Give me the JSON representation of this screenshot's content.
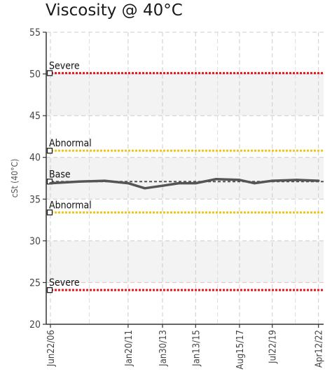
{
  "chart_data": {
    "type": "line",
    "title": "Viscosity @ 40°C",
    "ylabel": "cSt (40°C)",
    "xlabel": "",
    "ylim": [
      20,
      55
    ],
    "yticks": [
      20,
      25,
      30,
      35,
      40,
      45,
      50,
      55
    ],
    "xlim": [
      "2006-06-22",
      "2022-06-01"
    ],
    "xticks": [
      {
        "date": "2006-06-22",
        "label": "Jun22/06"
      },
      {
        "date": "2011-01-20",
        "label": "Jan20/11"
      },
      {
        "date": "2013-01-30",
        "label": "Jan30/13"
      },
      {
        "date": "2015-01-13",
        "label": "Jan13/15"
      },
      {
        "date": "2017-08-15",
        "label": "Aug15/17"
      },
      {
        "date": "2019-07-22",
        "label": "Jul22/19"
      },
      {
        "date": "2022-04-12",
        "label": "Apr12/22"
      }
    ],
    "grid": true,
    "shaded_bands": [
      [
        25,
        30
      ],
      [
        35,
        40
      ],
      [
        45,
        50
      ]
    ],
    "limits": [
      {
        "label": "Severe",
        "value": 50.1,
        "color": "#e8141b"
      },
      {
        "label": "Abnormal",
        "value": 40.8,
        "color": "#f0c419"
      },
      {
        "label": "Base",
        "value": 37.1,
        "color": "#555555"
      },
      {
        "label": "Abnormal",
        "value": 33.4,
        "color": "#f0c419"
      },
      {
        "label": "Severe",
        "value": 24.1,
        "color": "#e8141b"
      }
    ],
    "series": [
      {
        "color": "#555555",
        "x": [
          "2006-06-22",
          "2008-03-01",
          "2009-09-01",
          "2011-01-20",
          "2012-01-15",
          "2013-01-30",
          "2014-01-20",
          "2015-01-13",
          "2016-04-01",
          "2017-08-15",
          "2018-07-01",
          "2019-07-22",
          "2021-01-01",
          "2022-04-12"
        ],
        "y": [
          36.9,
          37.1,
          37.2,
          36.9,
          36.3,
          36.6,
          36.9,
          36.9,
          37.4,
          37.3,
          36.9,
          37.2,
          37.3,
          37.2
        ]
      }
    ]
  }
}
